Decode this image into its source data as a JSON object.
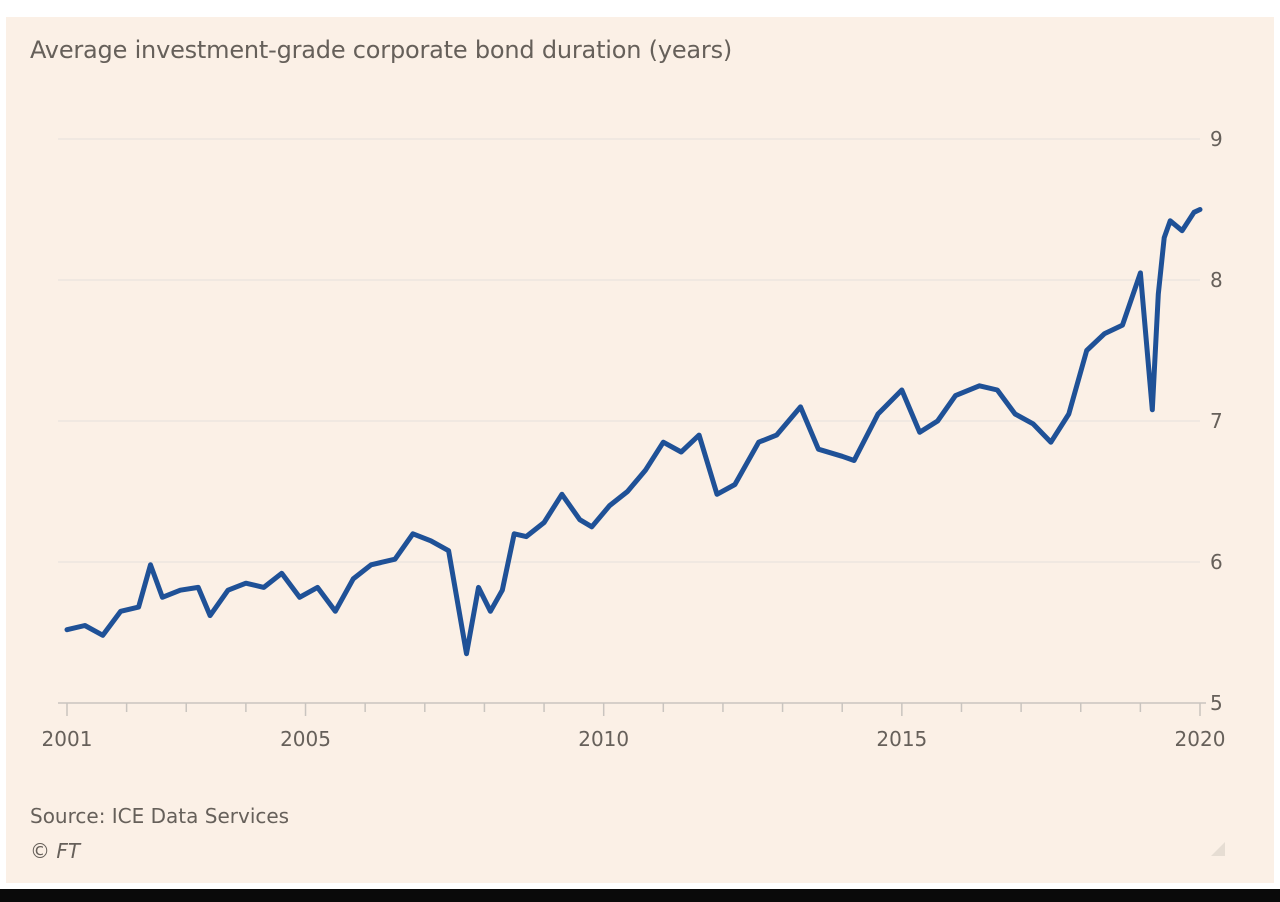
{
  "figure": {
    "title": "Average investment-grade corporate bond duration (years)",
    "source": "Source: ICE Data Services",
    "copyright": "© FT"
  },
  "colors": {
    "background": "#fbf0e6",
    "line": "#1f5197",
    "gridline": "#ede6df",
    "axis": "#c9c4bf",
    "text": "#66605a"
  },
  "chart_data": {
    "type": "line",
    "title": "Average investment-grade corporate bond duration (years)",
    "xlabel": "",
    "ylabel": "",
    "xlim": [
      2001.0,
      2020.0
    ],
    "ylim": [
      5,
      9
    ],
    "x_tick_labels": [
      "2001",
      "2005",
      "2010",
      "2015",
      "2020"
    ],
    "x_ticks": [
      2001,
      2005,
      2010,
      2015,
      2020
    ],
    "y_ticks": [
      5,
      6,
      7,
      8,
      9
    ],
    "y_axis_side": "right",
    "grid": "horizontal",
    "series": [
      {
        "x": [
          2001.0,
          2001.3,
          2001.6,
          2001.9,
          2002.2,
          2002.4,
          2002.6,
          2002.9,
          2003.2,
          2003.4,
          2003.7,
          2004.0,
          2004.3,
          2004.6,
          2004.9,
          2005.2,
          2005.5,
          2005.8,
          2006.1,
          2006.5,
          2006.8,
          2007.1,
          2007.4,
          2007.7,
          2007.9,
          2008.1,
          2008.3,
          2008.5,
          2008.7,
          2009.0,
          2009.3,
          2009.6,
          2009.8,
          2010.1,
          2010.4,
          2010.7,
          2011.0,
          2011.3,
          2011.6,
          2011.9,
          2012.2,
          2012.4,
          2012.6,
          2012.9,
          2013.3,
          2013.6,
          2014.0,
          2014.2,
          2014.6,
          2015.0,
          2015.3,
          2015.6,
          2015.9,
          2016.3,
          2016.6,
          2016.9,
          2017.2,
          2017.5,
          2017.8,
          2018.1,
          2018.4,
          2018.7,
          2019.0,
          2019.2,
          2019.3,
          2019.4,
          2019.5,
          2019.7,
          2019.9,
          2020.0
        ],
        "y": [
          5.52,
          5.55,
          5.48,
          5.65,
          5.68,
          5.98,
          5.75,
          5.8,
          5.82,
          5.62,
          5.8,
          5.85,
          5.82,
          5.92,
          5.75,
          5.82,
          5.65,
          5.88,
          5.98,
          6.02,
          6.2,
          6.15,
          6.08,
          5.35,
          5.82,
          5.65,
          5.8,
          6.2,
          6.18,
          6.28,
          6.48,
          6.3,
          6.25,
          6.4,
          6.5,
          6.65,
          6.85,
          6.78,
          6.9,
          6.48,
          6.55,
          6.7,
          6.85,
          6.9,
          7.1,
          6.8,
          6.75,
          6.72,
          7.05,
          7.22,
          6.92,
          7.0,
          7.18,
          7.25,
          7.22,
          7.05,
          6.98,
          6.85,
          7.05,
          7.5,
          7.62,
          7.68,
          8.05,
          7.08,
          7.9,
          8.3,
          8.42,
          8.35,
          8.48,
          8.5
        ]
      }
    ]
  }
}
